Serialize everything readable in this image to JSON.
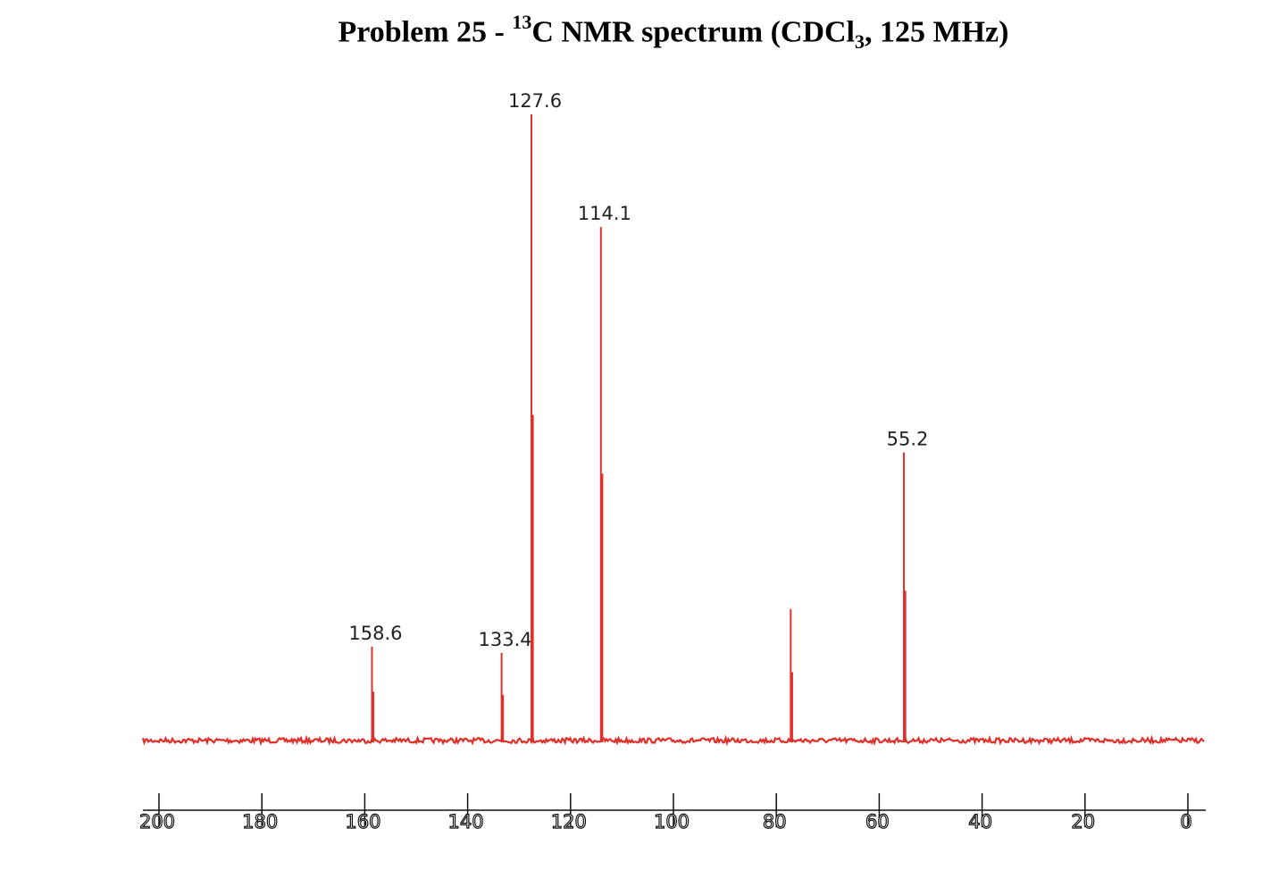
{
  "title": {
    "prefix": "Problem 25 - ",
    "superscript": "13",
    "middle": "C NMR spectrum (CDCl",
    "subscript": "3",
    "suffix": ", 125 MHz)"
  },
  "chart_data": {
    "type": "line",
    "title": "Problem 25 - 13C NMR spectrum (CDCl3, 125 MHz)",
    "xlabel": "",
    "ylabel": "",
    "xlim": [
      200,
      0
    ],
    "x_ticks": [
      200,
      180,
      160,
      140,
      120,
      100,
      80,
      60,
      40,
      20,
      0
    ],
    "x_tick_labels": [
      "200",
      "180",
      "160",
      "140",
      "120",
      "100",
      "80",
      "60",
      "40",
      "20",
      "0"
    ],
    "y_axis_visible": false,
    "grid": false,
    "baseline_noise": true,
    "color": "#e0302a",
    "peaks": [
      {
        "ppm": 158.6,
        "intensity": 0.15,
        "label": "158.6"
      },
      {
        "ppm": 133.4,
        "intensity": 0.14,
        "label": "133.4"
      },
      {
        "ppm": 127.6,
        "intensity": 1.0,
        "label": "127.6"
      },
      {
        "ppm": 114.1,
        "intensity": 0.82,
        "label": "114.1"
      },
      {
        "ppm": 77.2,
        "intensity": 0.21,
        "label": ""
      },
      {
        "ppm": 55.2,
        "intensity": 0.46,
        "label": "55.2"
      }
    ]
  }
}
